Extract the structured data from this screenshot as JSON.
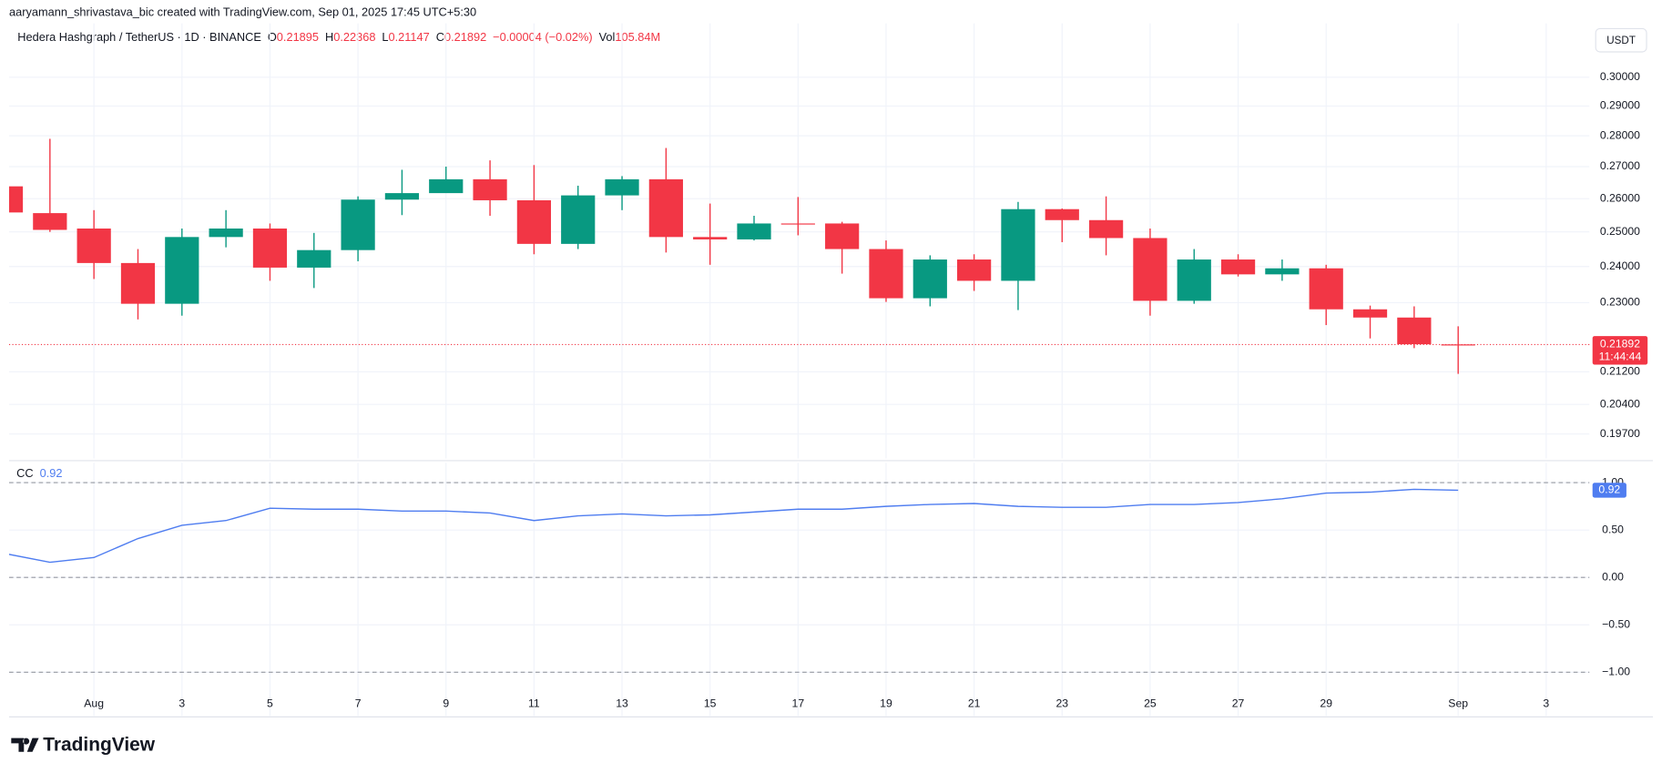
{
  "header": {
    "attribution": "aaryamann_shrivastava_bic created with TradingView.com, Sep 01, 2025 17:45 UTC+5:30",
    "symbol": "Hedera Hashgraph / TetherUS · 1D · BINANCE",
    "ohlc": [
      {
        "label": "O",
        "value": "0.21895"
      },
      {
        "label": "H",
        "value": "0.22368"
      },
      {
        "label": "L",
        "value": "0.21147"
      },
      {
        "label": "C",
        "value": "0.21892"
      }
    ],
    "change": "−0.00004 (−0.02%)",
    "volume_label": "Vol",
    "volume": "105.84M",
    "currency": "USDT"
  },
  "chart_data": [
    {
      "type": "candlestick",
      "categories": [
        null,
        null,
        "Aug",
        null,
        "3",
        null,
        "5",
        null,
        "7",
        null,
        "9",
        null,
        "11",
        null,
        "13",
        null,
        "15",
        null,
        "17",
        null,
        "19",
        null,
        "21",
        null,
        "23",
        null,
        "25",
        null,
        "27",
        null,
        "29",
        null,
        null,
        "Sep",
        null,
        "3"
      ],
      "open": [
        0.2638,
        0.2556,
        0.251,
        0.241,
        0.2297,
        0.2485,
        0.251,
        0.2397,
        0.2447,
        0.2597,
        0.2617,
        0.266,
        0.2595,
        0.2465,
        0.261,
        0.266,
        0.2485,
        0.2478,
        0.2525,
        0.2525,
        0.245,
        0.2312,
        0.242,
        0.236,
        0.2568,
        0.2535,
        0.2482,
        0.2305,
        0.242,
        0.2378,
        0.2395,
        0.2282,
        0.226,
        0.21895,
        null,
        null
      ],
      "high": [
        0.265,
        0.279,
        0.2565,
        0.245,
        0.251,
        0.2565,
        0.2525,
        0.2497,
        0.2607,
        0.269,
        0.27,
        0.272,
        0.2705,
        0.264,
        0.267,
        0.276,
        0.2585,
        0.2548,
        0.2605,
        0.253,
        0.2475,
        0.2432,
        0.2435,
        0.259,
        0.257,
        0.2607,
        0.251,
        0.245,
        0.2435,
        0.242,
        0.2405,
        0.2292,
        0.229,
        0.22368,
        null,
        null
      ],
      "low": [
        0.255,
        0.25,
        0.2365,
        0.2255,
        0.2265,
        0.2455,
        0.236,
        0.234,
        0.2415,
        0.255,
        0.262,
        0.2548,
        0.2435,
        0.245,
        0.2565,
        0.244,
        0.2405,
        0.2475,
        0.249,
        0.238,
        0.2302,
        0.229,
        0.2332,
        0.228,
        0.247,
        0.2432,
        0.2265,
        0.2297,
        0.2372,
        0.236,
        0.224,
        0.2205,
        0.218,
        0.21147,
        null,
        null
      ],
      "close": [
        0.2558,
        0.2506,
        0.241,
        0.2297,
        0.2485,
        0.251,
        0.2397,
        0.2447,
        0.2597,
        0.2617,
        0.266,
        0.2595,
        0.2465,
        0.261,
        0.266,
        0.2485,
        0.2478,
        0.2525,
        0.2522,
        0.245,
        0.2312,
        0.242,
        0.236,
        0.2568,
        0.2535,
        0.2482,
        0.2305,
        0.242,
        0.2378,
        0.2395,
        0.2282,
        0.226,
        0.219,
        0.21892,
        null,
        null
      ],
      "up_color": "#089981",
      "down_color": "#f23645",
      "ylim": [
        0.1914,
        0.3197
      ],
      "log_scale": true,
      "grid": true,
      "yticks": [
        {
          "value": 0.3,
          "label": "0.30000"
        },
        {
          "value": 0.29,
          "label": "0.29000"
        },
        {
          "value": 0.28,
          "label": "0.28000"
        },
        {
          "value": 0.27,
          "label": "0.27000"
        },
        {
          "value": 0.26,
          "label": "0.26000"
        },
        {
          "value": 0.25,
          "label": "0.25000"
        },
        {
          "value": 0.24,
          "label": "0.24000"
        },
        {
          "value": 0.23,
          "label": "0.23000"
        },
        {
          "value": 0.212,
          "label": "0.21200"
        },
        {
          "value": 0.204,
          "label": "0.20400"
        },
        {
          "value": 0.197,
          "label": "0.19700"
        }
      ],
      "last_value_label": "0.21892",
      "countdown": "11:44:44"
    },
    {
      "type": "line",
      "title": "CC",
      "value_label": "0.92",
      "series": [
        {
          "name": "CC",
          "color": "#4f7df0",
          "values": [
            0.25,
            0.16,
            0.21,
            0.41,
            0.55,
            0.6,
            0.73,
            0.72,
            0.72,
            0.7,
            0.7,
            0.68,
            0.6,
            0.65,
            0.67,
            0.65,
            0.66,
            0.69,
            0.72,
            0.72,
            0.75,
            0.77,
            0.78,
            0.75,
            0.74,
            0.74,
            0.77,
            0.77,
            0.79,
            0.83,
            0.89,
            0.9,
            0.93,
            0.92,
            null,
            null
          ]
        }
      ],
      "ylim": [
        -1.46,
        1.21
      ],
      "yticks": [
        {
          "value": 1,
          "label": "1.00"
        },
        {
          "value": 0.5,
          "label": "0.50"
        },
        {
          "value": 0,
          "label": "0.00"
        },
        {
          "value": -0.5,
          "label": "−0.50"
        },
        {
          "value": -1,
          "label": "−1.00"
        }
      ],
      "hlines": [
        1,
        0,
        -1
      ],
      "grid": true
    }
  ],
  "footer": {
    "brand": "TradingView"
  }
}
